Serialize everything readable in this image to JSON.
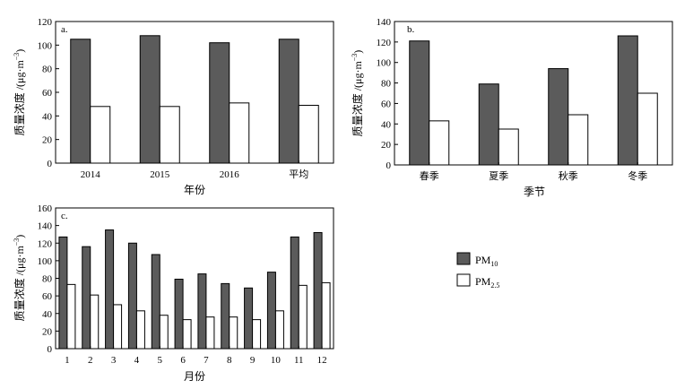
{
  "legend": {
    "pm10": {
      "base": "PM",
      "sub": "10",
      "color": "#5b5b5b"
    },
    "pm25": {
      "base": "PM",
      "sub": "2.5",
      "color": "#ffffff"
    }
  },
  "ylabel_parts": {
    "prefix": "质量浓度 /(μg·m",
    "sup": "−3",
    "suffix": ")"
  },
  "chart_data": [
    {
      "id": "a",
      "type": "bar",
      "panel_label": "a.",
      "title": "",
      "xlabel": "年份",
      "ylabel": "质量浓度 /(μg·m⁻³)",
      "categories": [
        "2014",
        "2015",
        "2016",
        "平均"
      ],
      "ylim": [
        0,
        120
      ],
      "yticks": [
        0,
        20,
        40,
        60,
        80,
        100,
        120
      ],
      "series": [
        {
          "name": "PM10",
          "values": [
            105,
            108,
            102,
            105
          ]
        },
        {
          "name": "PM2.5",
          "values": [
            48,
            48,
            51,
            49
          ]
        }
      ]
    },
    {
      "id": "b",
      "type": "bar",
      "panel_label": "b.",
      "title": "",
      "xlabel": "季节",
      "ylabel": "质量浓度 /(μg·m⁻³)",
      "categories": [
        "春季",
        "夏季",
        "秋季",
        "冬季"
      ],
      "ylim": [
        0,
        140
      ],
      "yticks": [
        0,
        20,
        40,
        60,
        80,
        100,
        120,
        140
      ],
      "series": [
        {
          "name": "PM10",
          "values": [
            121,
            79,
            94,
            126
          ]
        },
        {
          "name": "PM2.5",
          "values": [
            43,
            35,
            49,
            70
          ]
        }
      ]
    },
    {
      "id": "c",
      "type": "bar",
      "panel_label": "c.",
      "title": "",
      "xlabel": "月份",
      "ylabel": "质量浓度 /(μg·m⁻³)",
      "categories": [
        "1",
        "2",
        "3",
        "4",
        "5",
        "6",
        "7",
        "8",
        "9",
        "10",
        "11",
        "12"
      ],
      "ylim": [
        0,
        160
      ],
      "yticks": [
        0,
        20,
        40,
        60,
        80,
        100,
        120,
        140,
        160
      ],
      "series": [
        {
          "name": "PM10",
          "values": [
            127,
            116,
            135,
            120,
            107,
            79,
            85,
            74,
            69,
            87,
            127,
            132
          ]
        },
        {
          "name": "PM2.5",
          "values": [
            73,
            61,
            50,
            43,
            38,
            33,
            36,
            36,
            33,
            43,
            72,
            75
          ]
        }
      ]
    }
  ]
}
